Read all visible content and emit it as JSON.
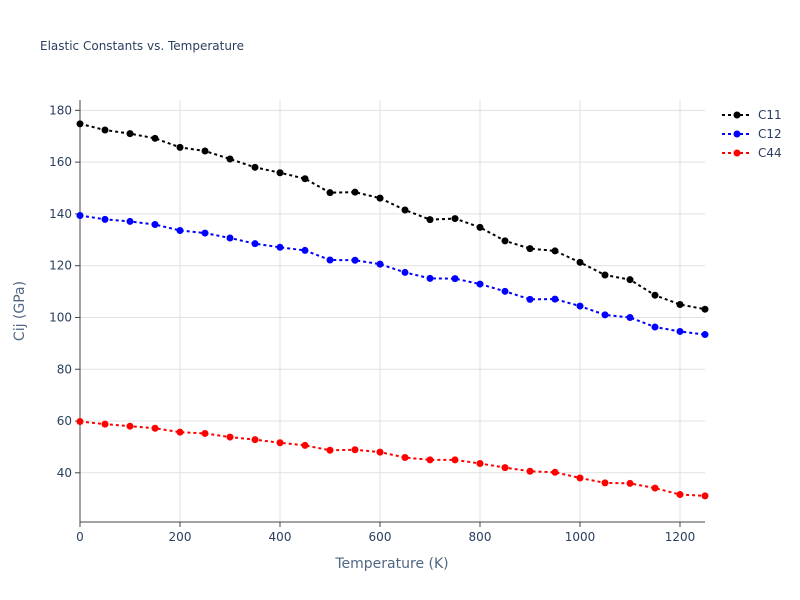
{
  "chart_data": {
    "type": "line",
    "title": "Elastic Constants vs. Temperature",
    "xlabel": "Temperature (K)",
    "ylabel": "Cij (GPa)",
    "xlim": [
      0,
      1250
    ],
    "ylim": [
      21,
      184
    ],
    "x_ticks": [
      0,
      200,
      400,
      600,
      800,
      1000,
      1200
    ],
    "y_ticks": [
      40,
      60,
      80,
      100,
      120,
      140,
      160,
      180
    ],
    "grid": true,
    "legend_position": "top-right",
    "line_style": "dotted",
    "x": [
      0,
      50,
      100,
      150,
      200,
      250,
      300,
      350,
      400,
      450,
      500,
      550,
      600,
      650,
      700,
      750,
      800,
      850,
      900,
      950,
      1000,
      1050,
      1100,
      1150,
      1200,
      1250
    ],
    "series": [
      {
        "name": "C11",
        "color": "#000000",
        "values": [
          174.8,
          172.4,
          171.0,
          169.2,
          165.7,
          164.3,
          161.2,
          158.0,
          155.9,
          153.6,
          148.2,
          148.4,
          146.1,
          141.5,
          137.8,
          138.2,
          134.8,
          129.6,
          126.6,
          125.7,
          121.3,
          116.4,
          114.6,
          108.6,
          105.0,
          103.2
        ]
      },
      {
        "name": "C12",
        "color": "#0000ff",
        "values": [
          139.4,
          137.9,
          137.1,
          135.9,
          133.6,
          132.6,
          130.7,
          128.5,
          127.1,
          125.9,
          122.2,
          122.1,
          120.6,
          117.4,
          115.1,
          115.0,
          112.9,
          110.1,
          107.0,
          107.1,
          104.4,
          101.0,
          100.0,
          96.3,
          94.6,
          93.4
        ]
      },
      {
        "name": "C44",
        "color": "#ff0000",
        "values": [
          59.8,
          58.8,
          58.0,
          57.2,
          55.7,
          55.2,
          53.8,
          52.8,
          51.6,
          50.6,
          48.7,
          48.9,
          48.0,
          45.9,
          45.0,
          45.0,
          43.6,
          42.0,
          40.6,
          40.2,
          38.0,
          36.1,
          35.9,
          34.1,
          31.6,
          31.1
        ]
      }
    ]
  }
}
